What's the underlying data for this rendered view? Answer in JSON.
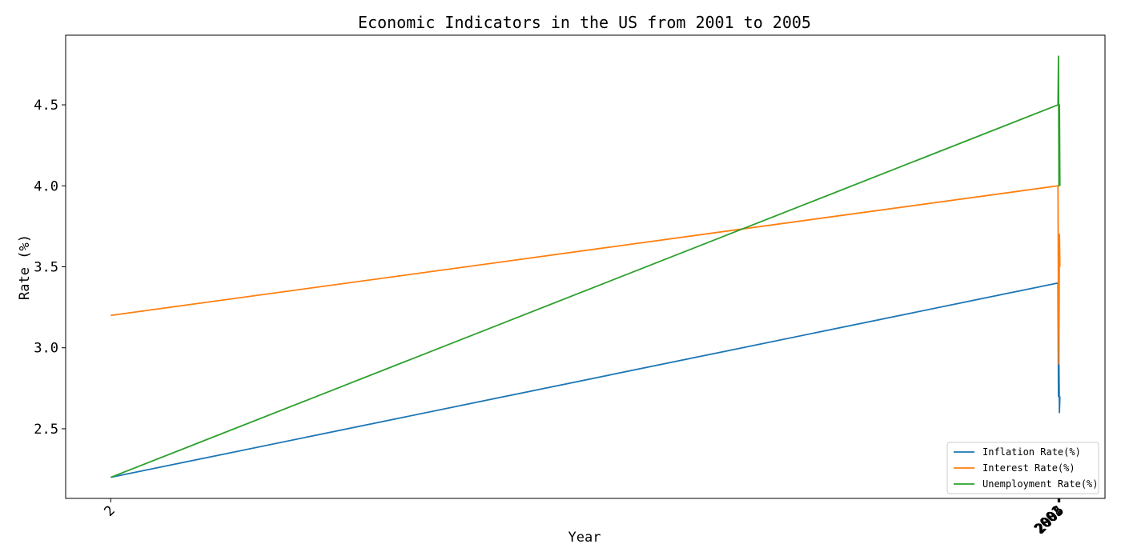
{
  "chart_data": {
    "type": "line",
    "title": "Economic Indicators in the US from 2001 to 2005",
    "xlabel": "Year",
    "ylabel": "Rate (%)",
    "x": [
      2,
      2001,
      2002,
      2003,
      2004,
      2005
    ],
    "x_tick_labels": [
      "2",
      "2001",
      "2002",
      "2003",
      "2004",
      "2005"
    ],
    "xlim": [
      -93.15,
      2100.15
    ],
    "ylim": [
      2.07,
      4.93
    ],
    "y_ticks": [
      2.5,
      3.0,
      3.5,
      4.0,
      4.5
    ],
    "y_tick_labels": [
      "2.5",
      "3.0",
      "3.5",
      "4.0",
      "4.5"
    ],
    "grid": false,
    "legend_position": "lower-right",
    "series": [
      {
        "name": "Inflation Rate(%)",
        "color": "#1f77b4",
        "values": [
          2.2,
          3.4,
          2.7,
          2.9,
          2.6,
          2.7
        ]
      },
      {
        "name": "Interest Rate(%)",
        "color": "#ff7f0e",
        "values": [
          3.2,
          4.0,
          3.2,
          2.9,
          3.7,
          3.5
        ]
      },
      {
        "name": "Unemployment Rate(%)",
        "color": "#2ca02c",
        "values": [
          2.2,
          4.5,
          4.8,
          4.0,
          4.5,
          4.0
        ]
      }
    ]
  }
}
